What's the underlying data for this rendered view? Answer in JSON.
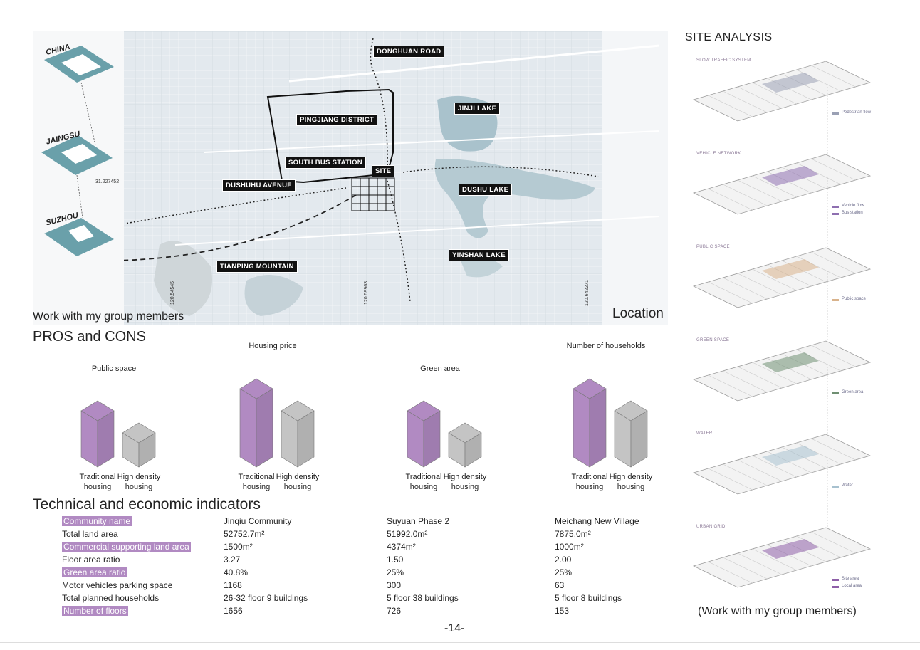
{
  "map": {
    "labels": {
      "donghuan": "DONGHUAN ROAD",
      "pingjiang": "PINGJIANG DISTRICT",
      "jinji": "JINJI LAKE",
      "south_bus": "SOUTH BUS STATION",
      "site": "SITE",
      "dushuhu_avenue": "DUSHUHU AVENUE",
      "dushu_lake": "DUSHU LAKE",
      "yinshan": "YINSHAN LAKE",
      "tianping": "TIANPING MOUNTAIN"
    },
    "insets": {
      "china": "CHINA",
      "jiangsu": "JAINGSU",
      "suzhou": "SUZHOU"
    },
    "coords": {
      "lat": "31.227452",
      "lon1": "120.54545",
      "lon2": "120.59963",
      "lon3": "120.642271"
    },
    "work_note": "Work with my group members",
    "caption": "Location"
  },
  "pros_cons": {
    "title": "PROS and CONS",
    "categories": [
      "Traditional housing",
      "High density housing"
    ],
    "colors": {
      "traditional": "#b18ac2",
      "high_density": "#c4c4c4"
    }
  },
  "chart_data": [
    {
      "type": "bar",
      "title": "Public space",
      "categories": [
        "Traditional housing",
        "High density housing"
      ],
      "values": [
        3,
        2
      ]
    },
    {
      "type": "bar",
      "title": "Housing price",
      "categories": [
        "Traditional housing",
        "High density housing"
      ],
      "values": [
        4,
        3
      ]
    },
    {
      "type": "bar",
      "title": "Green area",
      "categories": [
        "Traditional housing",
        "High density housing"
      ],
      "values": [
        3,
        2
      ]
    },
    {
      "type": "bar",
      "title": "Number of households",
      "categories": [
        "Traditional housing",
        "High density housing"
      ],
      "values": [
        4,
        3
      ]
    }
  ],
  "indicators": {
    "title": "Technical and economic indicators",
    "rows": [
      {
        "label": "Community name",
        "highlight": true,
        "v1": "Jinqiu Community",
        "v2": "Suyuan Phase 2",
        "v3": "Meichang New Village"
      },
      {
        "label": "Total land area",
        "highlight": false,
        "v1": "52752.7m²",
        "v2": "51992.0m²",
        "v3": "7875.0m²"
      },
      {
        "label": "Commercial supporting land area",
        "highlight": true,
        "v1": "1500m²",
        "v2": "4374m²",
        "v3": "1000m²"
      },
      {
        "label": "Floor area ratio",
        "highlight": false,
        "v1": "3.27",
        "v2": "1.50",
        "v3": "2.00"
      },
      {
        "label": "Green area ratio",
        "highlight": true,
        "v1": "40.8%",
        "v2": "25%",
        "v3": "25%"
      },
      {
        "label": "Motor vehicles parking space",
        "highlight": false,
        "v1": "1168",
        "v2": "300",
        "v3": "63"
      },
      {
        "label": "Total planned households",
        "highlight": false,
        "v1": "26-32 floor  9 buildings",
        "v2": "5 floor  38 buildings",
        "v3": "5 floor  8 buildings"
      },
      {
        "label": "Number of floors",
        "highlight": true,
        "v1": "1656",
        "v2": "726",
        "v3": "153"
      }
    ]
  },
  "page_number": "-14-",
  "site_analysis": {
    "title": "SITE ANALYSIS",
    "layers": [
      {
        "label": "SLOW TRAFFIC SYSTEM",
        "legend": [
          "Pedestrian flow"
        ]
      },
      {
        "label": "VEHICLE NETWORK",
        "legend": [
          "Vehicle flow",
          "Bus station"
        ]
      },
      {
        "label": "PUBLIC SPACE",
        "legend": [
          "Public space"
        ]
      },
      {
        "label": "GREEN SPACE",
        "legend": [
          "Green area"
        ]
      },
      {
        "label": "WATER",
        "legend": [
          "Water"
        ]
      },
      {
        "label": "URBAN GRID",
        "legend": [
          "Site area",
          "Local area"
        ]
      }
    ],
    "caption": "(Work with my group members)"
  }
}
